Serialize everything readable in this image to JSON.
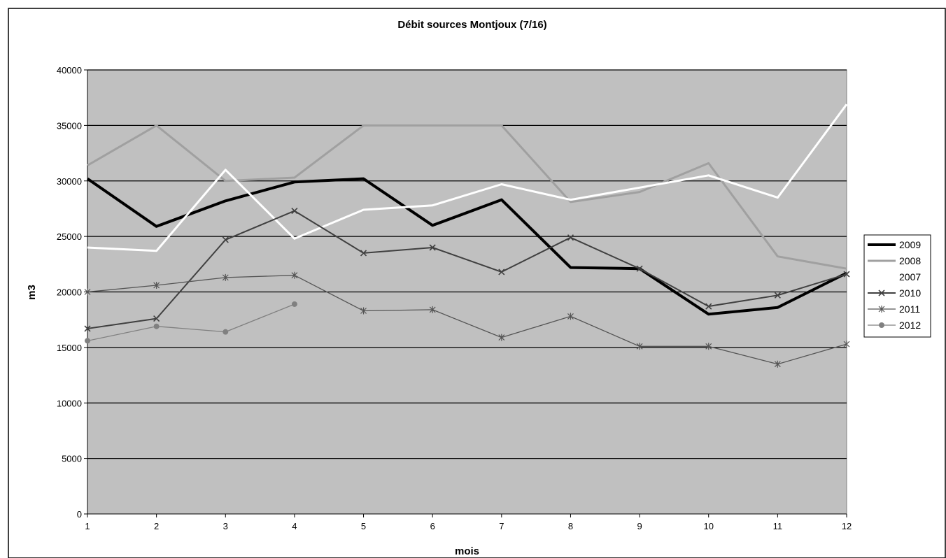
{
  "chart_data": {
    "type": "line",
    "title": "Débit sources Montjoux (7/16)",
    "xlabel": "mois",
    "ylabel": "m3",
    "categories": [
      "1",
      "2",
      "3",
      "4",
      "5",
      "6",
      "7",
      "8",
      "9",
      "10",
      "11",
      "12"
    ],
    "ylim": [
      0,
      40000
    ],
    "yticks": [
      0,
      5000,
      10000,
      15000,
      20000,
      25000,
      30000,
      35000,
      40000
    ],
    "grid": true,
    "legend_position": "right",
    "series": [
      {
        "name": "2009",
        "color": "#000000",
        "marker": "none",
        "values": [
          30200,
          25900,
          28200,
          29900,
          30200,
          26000,
          28300,
          22200,
          22100,
          18000,
          18600,
          21700
        ]
      },
      {
        "name": "2008",
        "color": "#a0a0a0",
        "marker": "none",
        "values": [
          31400,
          35000,
          30000,
          30300,
          35000,
          35000,
          35000,
          28100,
          29000,
          31600,
          23200,
          22100
        ]
      },
      {
        "name": "2007",
        "color": "#ffffff",
        "marker": "none",
        "values": [
          24000,
          23700,
          31000,
          24800,
          27400,
          27800,
          29700,
          28300,
          29400,
          30500,
          28500,
          36900
        ]
      },
      {
        "name": "2010",
        "color": "#404040",
        "marker": "x",
        "values": [
          16700,
          17600,
          24700,
          27300,
          23500,
          24000,
          21800,
          24900,
          22100,
          18700,
          19700,
          21600
        ]
      },
      {
        "name": "2011",
        "color": "#555555",
        "marker": "star",
        "values": [
          20000,
          20600,
          21300,
          21500,
          18300,
          18400,
          15900,
          17800,
          15100,
          15100,
          13500,
          15300
        ]
      },
      {
        "name": "2012",
        "color": "#808080",
        "marker": "circle",
        "values": [
          15600,
          16900,
          16400,
          18900,
          null,
          null,
          null,
          null,
          null,
          null,
          null,
          null
        ]
      }
    ]
  }
}
